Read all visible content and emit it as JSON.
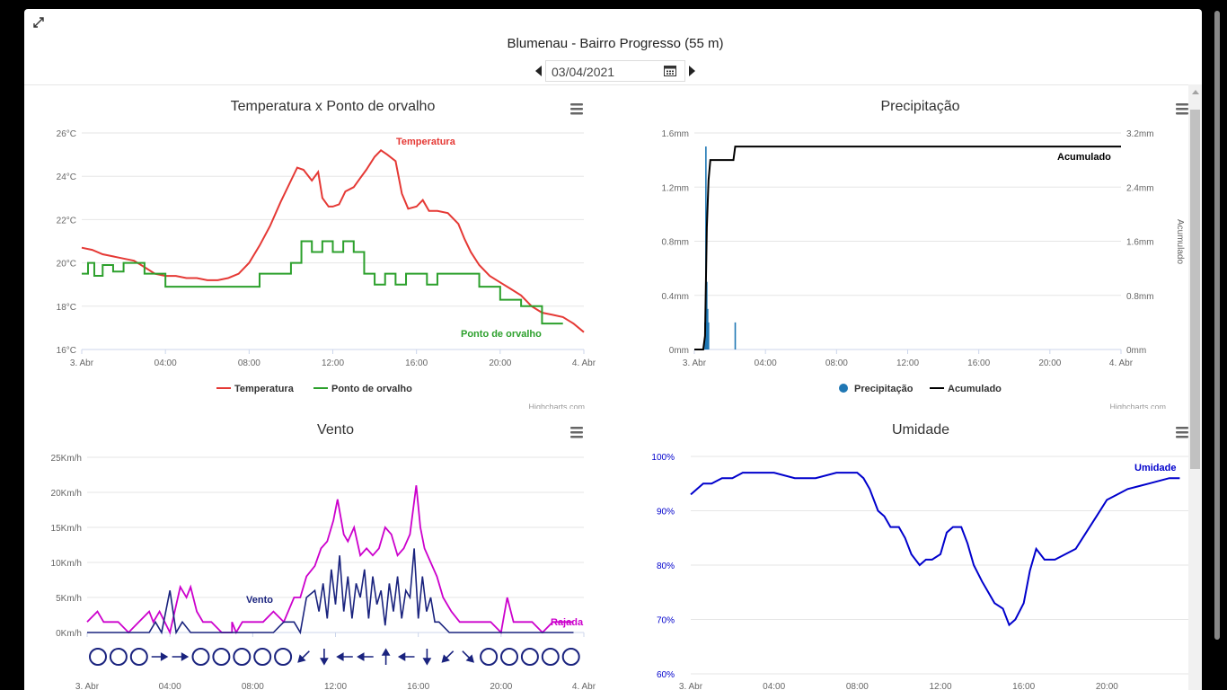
{
  "header": {
    "station": "Blumenau - Bairro Progresso (55 m)",
    "date": "03/04/2021"
  },
  "credits": "Highcharts.com",
  "colors": {
    "temperature": "#e53935",
    "dewpoint": "#2ca02c",
    "precip": "#1f77b4",
    "accum": "#000000",
    "wind": "#1a237e",
    "gust": "#cc00cc",
    "humidity": "#0000cc"
  },
  "chart_data": [
    {
      "id": "temp",
      "type": "line",
      "title": "Temperatura x Ponto de orvalho",
      "xticks": [
        "3. Abr",
        "04:00",
        "08:00",
        "12:00",
        "16:00",
        "20:00",
        "4. Abr"
      ],
      "xlim": [
        0,
        24
      ],
      "ylim": [
        16,
        26
      ],
      "yticks": [
        "16°C",
        "18°C",
        "20°C",
        "22°C",
        "24°C",
        "26°C"
      ],
      "legend": [
        "Temperatura",
        "Ponto de orvalho"
      ],
      "series": [
        {
          "name": "Temperatura",
          "color": "#e53935",
          "x": [
            0,
            0.5,
            1,
            1.5,
            2,
            2.5,
            3,
            3.5,
            4,
            4.5,
            5,
            5.5,
            6,
            6.5,
            7,
            7.5,
            8,
            8.5,
            9,
            9.5,
            10,
            10.3,
            10.6,
            11,
            11.3,
            11.5,
            11.8,
            12,
            12.3,
            12.6,
            13,
            13.3,
            13.6,
            14,
            14.3,
            14.6,
            15,
            15.3,
            15.6,
            16,
            16.3,
            16.6,
            17,
            17.5,
            18,
            18.3,
            18.6,
            19,
            19.5,
            20,
            20.5,
            21,
            21.5,
            22,
            22.5,
            23,
            23.5,
            24
          ],
          "y": [
            20.7,
            20.6,
            20.4,
            20.3,
            20.2,
            20.1,
            19.8,
            19.5,
            19.4,
            19.4,
            19.3,
            19.3,
            19.2,
            19.2,
            19.3,
            19.5,
            20.0,
            20.8,
            21.7,
            22.8,
            23.8,
            24.4,
            24.3,
            23.8,
            24.2,
            23.0,
            22.6,
            22.6,
            22.7,
            23.3,
            23.5,
            23.9,
            24.3,
            24.9,
            25.2,
            25.0,
            24.7,
            23.2,
            22.5,
            22.6,
            22.9,
            22.4,
            22.4,
            22.3,
            21.8,
            21.1,
            20.5,
            19.9,
            19.4,
            19.1,
            18.8,
            18.5,
            18.0,
            17.7,
            17.6,
            17.5,
            17.2,
            16.8
          ]
        },
        {
          "name": "Ponto de orvalho",
          "color": "#2ca02c",
          "x": [
            0,
            0.3,
            0.6,
            1,
            1.5,
            2,
            2.5,
            3,
            3.5,
            4,
            5,
            6,
            7,
            8,
            8.5,
            9,
            9.5,
            10,
            10.5,
            11,
            11.5,
            12,
            12.5,
            13,
            13.5,
            14,
            14.5,
            15,
            15.5,
            16,
            16.5,
            17,
            17.5,
            18,
            18.5,
            19,
            19.5,
            20,
            20.5,
            21,
            21.5,
            22,
            22.5,
            23
          ],
          "y": [
            19.5,
            20.0,
            19.4,
            19.9,
            19.6,
            20.0,
            20.0,
            19.5,
            19.5,
            18.9,
            18.9,
            18.9,
            18.9,
            18.9,
            19.5,
            19.5,
            19.5,
            20.0,
            21.0,
            20.5,
            21.0,
            20.5,
            21.0,
            20.5,
            19.5,
            19.0,
            19.5,
            19.0,
            19.5,
            19.5,
            19.0,
            19.5,
            19.5,
            19.5,
            19.5,
            18.9,
            18.9,
            18.3,
            18.3,
            18.0,
            18.0,
            17.2,
            17.2,
            17.2
          ]
        }
      ],
      "annotations": [
        {
          "text": "Temperatura",
          "color": "#e53935"
        },
        {
          "text": "Ponto de orvalho",
          "color": "#2ca02c"
        }
      ]
    },
    {
      "id": "precip",
      "type": "bar",
      "title": "Precipitação",
      "xticks": [
        "3. Abr",
        "04:00",
        "08:00",
        "12:00",
        "16:00",
        "20:00",
        "4. Abr"
      ],
      "xlim": [
        0,
        24
      ],
      "ylim": [
        0,
        1.6
      ],
      "yticks": [
        "0mm",
        "0.4mm",
        "0.8mm",
        "1.2mm",
        "1.6mm"
      ],
      "y2lim": [
        0,
        3.2
      ],
      "y2ticks": [
        "0mm",
        "0.8mm",
        "1.6mm",
        "2.4mm",
        "3.2mm"
      ],
      "y2label": "Acumulado",
      "legend": [
        "Precipitação",
        "Acumulado"
      ],
      "series": [
        {
          "name": "Precipitação",
          "color": "#1f77b4",
          "type": "bar",
          "x": [
            0.6,
            0.65,
            0.7,
            0.75,
            0.8,
            2.3
          ],
          "y": [
            0.2,
            1.5,
            0.5,
            0.3,
            0.2,
            0.2
          ]
        },
        {
          "name": "Acumulado",
          "color": "#000000",
          "type": "line",
          "x": [
            0,
            0.5,
            0.6,
            0.7,
            0.8,
            0.9,
            2.2,
            2.3,
            2.4,
            24
          ],
          "y": [
            0,
            0,
            0.2,
            1.8,
            2.5,
            2.8,
            2.8,
            3.0,
            3.0,
            3.0
          ]
        }
      ],
      "annotations": [
        {
          "text": "Acumulado",
          "color": "#000000"
        }
      ]
    },
    {
      "id": "wind",
      "type": "line",
      "title": "Vento",
      "xticks": [
        "3. Abr",
        "04:00",
        "08:00",
        "12:00",
        "16:00",
        "20:00",
        "4. Abr"
      ],
      "xlim": [
        0,
        24
      ],
      "ylim": [
        0,
        25
      ],
      "yticks": [
        "0Km/h",
        "5Km/h",
        "10Km/h",
        "15Km/h",
        "20Km/h",
        "25Km/h"
      ],
      "series": [
        {
          "name": "Rajada",
          "color": "#cc00cc",
          "x": [
            0,
            0.5,
            0.8,
            1,
            1.5,
            2,
            2.5,
            3,
            3.2,
            3.5,
            4,
            4.5,
            4.8,
            5,
            5.3,
            5.6,
            6,
            6.5,
            7,
            7,
            7.2,
            7.5,
            8,
            8.5,
            9,
            9.5,
            10,
            10.3,
            10.6,
            11,
            11.3,
            11.6,
            11.9,
            12.1,
            12.4,
            12.6,
            12.9,
            13.2,
            13.5,
            13.8,
            14.1,
            14.4,
            14.7,
            15.0,
            15.3,
            15.6,
            15.9,
            16.1,
            16.3,
            16.6,
            16.9,
            17.2,
            17.6,
            18,
            18.5,
            19,
            19.5,
            20,
            20.3,
            20.6,
            21,
            21.5,
            22,
            22.5,
            23,
            23.5
          ],
          "y": [
            1.5,
            3.0,
            1.5,
            1.5,
            1.5,
            0,
            1.5,
            3.0,
            1.5,
            3.0,
            0,
            6.5,
            5.0,
            6.5,
            3.0,
            1.5,
            1.5,
            0,
            0,
            1.5,
            0,
            1.5,
            1.5,
            1.5,
            3.0,
            1.5,
            5.0,
            5.0,
            8.0,
            9.5,
            12.0,
            13.0,
            16.0,
            19.0,
            14.0,
            13.0,
            15.0,
            11.0,
            12.0,
            11.0,
            12.0,
            15.0,
            14.0,
            11.0,
            12.0,
            14.0,
            21.0,
            15.0,
            12.0,
            10.0,
            8.0,
            5.0,
            3.0,
            1.5,
            1.5,
            1.5,
            1.5,
            0,
            5.0,
            1.5,
            1.5,
            1.5,
            0,
            1.5,
            1.5,
            1.5
          ]
        },
        {
          "name": "Vento",
          "color": "#1a237e",
          "x": [
            0,
            1,
            2,
            2.5,
            3,
            3.3,
            3.6,
            4,
            4.3,
            4.6,
            5,
            6,
            7,
            8,
            9,
            9.5,
            10,
            10.3,
            10.6,
            11,
            11.2,
            11.4,
            11.6,
            11.8,
            12,
            12.2,
            12.4,
            12.6,
            12.8,
            13.0,
            13.2,
            13.4,
            13.6,
            13.8,
            14.0,
            14.2,
            14.4,
            14.6,
            14.8,
            15.0,
            15.2,
            15.4,
            15.6,
            15.8,
            16.0,
            16.2,
            16.4,
            16.6,
            16.8,
            17,
            17.5,
            18,
            19,
            20,
            21,
            22,
            23,
            23.5
          ],
          "y": [
            0,
            0,
            0,
            0,
            0,
            1.5,
            0,
            6.0,
            0,
            1.5,
            0,
            0,
            0,
            0,
            0,
            1.5,
            1.5,
            0,
            5.0,
            6.0,
            3.0,
            7.0,
            2.0,
            9.0,
            4.0,
            11.0,
            3.0,
            8.0,
            2.0,
            7.0,
            5.0,
            9.0,
            2.0,
            8.0,
            4.0,
            6.0,
            1.0,
            7.0,
            3.0,
            8.0,
            2.0,
            6.0,
            5.0,
            12.0,
            2.0,
            8.0,
            3.0,
            5.0,
            1.5,
            1.5,
            0,
            0,
            0,
            0,
            0,
            0,
            0,
            0
          ]
        }
      ],
      "direction_arrows": [
        "calm",
        "calm",
        "calm",
        "E",
        "E",
        "calm",
        "calm",
        "calm",
        "calm",
        "calm",
        "SW",
        "S",
        "W",
        "W",
        "N",
        "W",
        "S",
        "SW",
        "SE",
        "calm",
        "calm",
        "calm",
        "calm",
        "calm"
      ],
      "annotations": [
        {
          "text": "Vento",
          "color": "#1a237e"
        },
        {
          "text": "Rajada",
          "color": "#cc00cc"
        }
      ]
    },
    {
      "id": "humidity",
      "type": "line",
      "title": "Umidade",
      "xticks": [
        "3. Abr",
        "04:00",
        "08:00",
        "12:00",
        "16:00",
        "20:00"
      ],
      "xlim": [
        0,
        24
      ],
      "ylim": [
        60,
        100
      ],
      "yticks": [
        "60%",
        "70%",
        "80%",
        "90%",
        "100%"
      ],
      "series": [
        {
          "name": "Umidade",
          "color": "#0000cc",
          "x": [
            0,
            0.3,
            0.6,
            1,
            1.5,
            2,
            2.5,
            3,
            4,
            5,
            6,
            7,
            8,
            8.3,
            8.6,
            9,
            9.3,
            9.6,
            10,
            10.3,
            10.6,
            11,
            11.3,
            11.6,
            12,
            12.3,
            12.6,
            13,
            13.3,
            13.6,
            14,
            14.3,
            14.6,
            15,
            15.3,
            15.6,
            16,
            16.3,
            16.6,
            17,
            17.5,
            18,
            18.5,
            19,
            19.5,
            20,
            20.5,
            21,
            22,
            23,
            23.5
          ],
          "y": [
            93,
            94,
            95,
            95,
            96,
            96,
            97,
            97,
            97,
            96,
            96,
            97,
            97,
            96,
            94,
            90,
            89,
            87,
            87,
            85,
            82,
            80,
            81,
            81,
            82,
            86,
            87,
            87,
            84,
            80,
            77,
            75,
            73,
            72,
            69,
            70,
            73,
            79,
            83,
            81,
            81,
            82,
            83,
            86,
            89,
            92,
            93,
            94,
            95,
            96,
            96
          ]
        }
      ],
      "annotations": [
        {
          "text": "Umidade",
          "color": "#0000cc"
        }
      ]
    }
  ]
}
